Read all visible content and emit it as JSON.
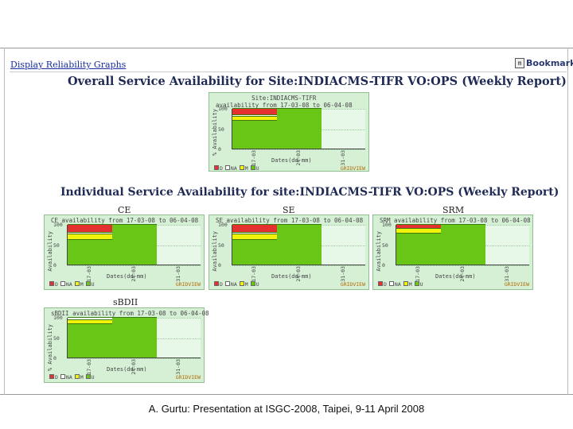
{
  "nav": {
    "link": "Display Reliability Graphs",
    "bookmark": "Bookmark",
    "bookmark_icon": "m"
  },
  "headings": {
    "overall": "Overall Service Availability for Site:INDIACMS-TIFR VO:OPS (Weekly Report)",
    "individual": "Individual Service Availability for site:INDIACMS-TIFR VO:OPS (Weekly Report)"
  },
  "colors": {
    "red": "#e53030",
    "yellow": "#f2f20a",
    "green": "#6ac616",
    "bg": "#d6f0d6"
  },
  "legend": {
    "items": [
      {
        "code": "D",
        "color": "#e53030"
      },
      {
        "code": "NA",
        "color": "#ffffff"
      },
      {
        "code": "M",
        "color": "#f2f20a"
      },
      {
        "code": "U",
        "color": "#6ac616"
      }
    ],
    "brand": "GRIDVIEW"
  },
  "charts": [
    {
      "section_label": "",
      "title_line1": "Site:INDIACMS-TIFR",
      "title_line2": "availability from 17-03-08 to 06-04-08",
      "ylabel": "% Availability",
      "xlabel": "Dates(dd-mm)",
      "xticks": [
        "17-03",
        "24-03",
        "31-03"
      ]
    },
    {
      "section_label": "CE",
      "title_line1": "",
      "title_line2": "CE availability from 17-03-08 to 06-04-08",
      "ylabel": "Availability",
      "xlabel": "Dates(dd-mm)",
      "xticks": [
        "17-03",
        "24-03",
        "31-03"
      ]
    },
    {
      "section_label": "SE",
      "title_line1": "",
      "title_line2": "SE availability from 17-03-08 to 06-04-08",
      "ylabel": "Availability",
      "xlabel": "Dates(dd-mm)",
      "xticks": [
        "17-03",
        "24-03",
        "31-03"
      ]
    },
    {
      "section_label": "SRM",
      "title_line1": "",
      "title_line2": "SRM availability from 17-03-08 to 06-04-08",
      "ylabel": "Availability",
      "xlabel": "Dates(dd-mm)",
      "xticks": [
        "17-03",
        "24-03",
        "31-03"
      ]
    },
    {
      "section_label": "sBDII",
      "title_line1": "",
      "title_line2": "sBDII availability from 17-03-08 to 06-04-08",
      "ylabel": "% Availability",
      "xlabel": "Dates(dd-mm)",
      "xticks": [
        "17-03",
        "24-03",
        "31-03"
      ]
    }
  ],
  "chart_data": [
    {
      "type": "bar",
      "title": "Site:INDIACMS-TIFR availability from 17-03-08 to 06-04-08",
      "categories": [
        "17-03",
        "24-03",
        "31-03"
      ],
      "ylim": [
        0,
        100
      ],
      "yticks": [
        0,
        50,
        100
      ],
      "series": [
        {
          "name": "U",
          "values": [
            70,
            100,
            0
          ]
        },
        {
          "name": "M",
          "values": [
            10,
            0,
            0
          ]
        },
        {
          "name": "NA",
          "values": [
            5,
            0,
            0
          ]
        },
        {
          "name": "D",
          "values": [
            15,
            0,
            0
          ]
        }
      ]
    },
    {
      "type": "bar",
      "title": "CE availability from 17-03-08 to 06-04-08",
      "categories": [
        "17-03",
        "24-03",
        "31-03"
      ],
      "ylim": [
        0,
        100
      ],
      "yticks": [
        0,
        50,
        100
      ],
      "series": [
        {
          "name": "U",
          "values": [
            63,
            100,
            0
          ]
        },
        {
          "name": "M",
          "values": [
            13,
            0,
            0
          ]
        },
        {
          "name": "NA",
          "values": [
            4,
            0,
            0
          ]
        },
        {
          "name": "D",
          "values": [
            20,
            0,
            0
          ]
        }
      ]
    },
    {
      "type": "bar",
      "title": "SE availability from 17-03-08 to 06-04-08",
      "categories": [
        "17-03",
        "24-03",
        "31-03"
      ],
      "ylim": [
        0,
        100
      ],
      "yticks": [
        0,
        50,
        100
      ],
      "series": [
        {
          "name": "U",
          "values": [
            63,
            100,
            0
          ]
        },
        {
          "name": "M",
          "values": [
            13,
            0,
            0
          ]
        },
        {
          "name": "NA",
          "values": [
            4,
            0,
            0
          ]
        },
        {
          "name": "D",
          "values": [
            20,
            0,
            0
          ]
        }
      ]
    },
    {
      "type": "bar",
      "title": "SRM availability from 17-03-08 to 06-04-08",
      "categories": [
        "17-03",
        "24-03",
        "31-03"
      ],
      "ylim": [
        0,
        100
      ],
      "yticks": [
        0,
        50,
        100
      ],
      "series": [
        {
          "name": "U",
          "values": [
            78,
            100,
            0
          ]
        },
        {
          "name": "M",
          "values": [
            13,
            0,
            0
          ]
        },
        {
          "name": "NA",
          "values": [
            0,
            0,
            0
          ]
        },
        {
          "name": "D",
          "values": [
            9,
            0,
            0
          ]
        }
      ]
    },
    {
      "type": "bar",
      "title": "sBDII availability from 17-03-08 to 06-04-08",
      "categories": [
        "17-03",
        "24-03",
        "31-03"
      ],
      "ylim": [
        0,
        100
      ],
      "yticks": [
        0,
        50,
        100
      ],
      "series": [
        {
          "name": "U",
          "values": [
            85,
            100,
            0
          ]
        },
        {
          "name": "M",
          "values": [
            10,
            0,
            0
          ]
        },
        {
          "name": "NA",
          "values": [
            5,
            0,
            0
          ]
        },
        {
          "name": "D",
          "values": [
            0,
            0,
            0
          ]
        }
      ]
    }
  ],
  "footer": {
    "caption": "A. Gurtu: Presentation at ISGC-2008, Taipei, 9-11 April 2008"
  }
}
